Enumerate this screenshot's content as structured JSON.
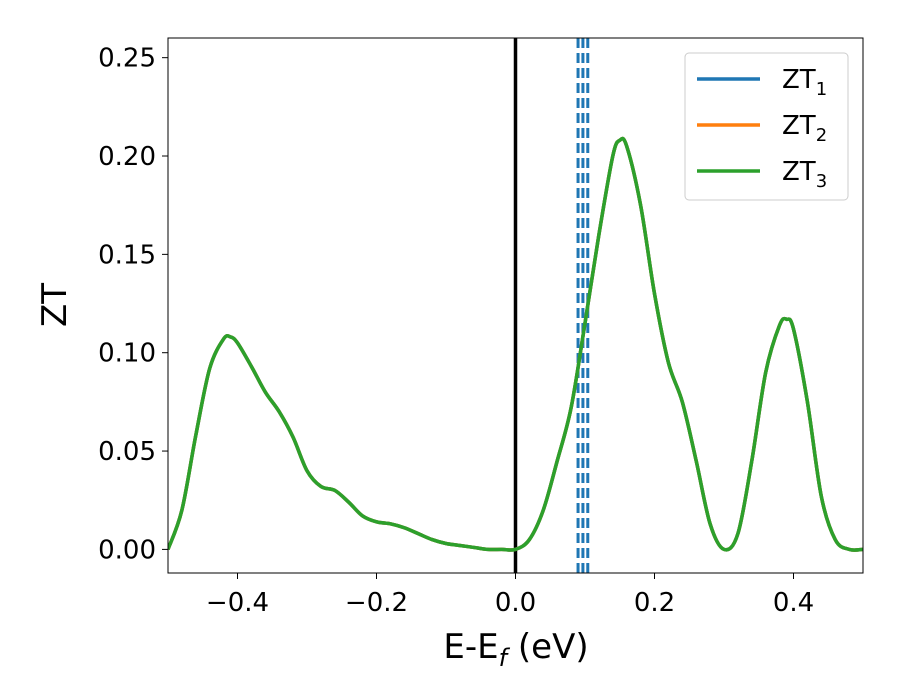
{
  "chart_data": {
    "type": "line",
    "title": "",
    "xlabel": {
      "main": "E-E",
      "sub": "f",
      "suffix": " (eV)"
    },
    "ylabel": "ZT",
    "xlim": [
      -0.5,
      0.5
    ],
    "ylim": [
      -0.012,
      0.26
    ],
    "xticks": [
      -0.4,
      -0.2,
      0.0,
      0.2,
      0.4
    ],
    "xtick_labels": [
      "−0.4",
      "−0.2",
      "0.0",
      "0.2",
      "0.4"
    ],
    "yticks": [
      0.0,
      0.05,
      0.1,
      0.15,
      0.2,
      0.25
    ],
    "ytick_labels": [
      "0.00",
      "0.05",
      "0.10",
      "0.15",
      "0.20",
      "0.25"
    ],
    "grid": false,
    "legend_position": "top-right",
    "series": [
      {
        "name": "ZT",
        "sub": "1",
        "color": "#1f77b4"
      },
      {
        "name": "ZT",
        "sub": "2",
        "color": "#ff7f0e"
      },
      {
        "name": "ZT",
        "sub": "3",
        "color": "#2ca02c"
      }
    ],
    "curve": {
      "x": [
        -0.5,
        -0.48,
        -0.46,
        -0.44,
        -0.42,
        -0.41,
        -0.4,
        -0.38,
        -0.36,
        -0.34,
        -0.32,
        -0.3,
        -0.28,
        -0.26,
        -0.24,
        -0.22,
        -0.2,
        -0.18,
        -0.16,
        -0.14,
        -0.12,
        -0.1,
        -0.08,
        -0.06,
        -0.04,
        -0.02,
        0.0,
        0.02,
        0.04,
        0.06,
        0.08,
        0.1,
        0.12,
        0.14,
        0.15,
        0.16,
        0.18,
        0.2,
        0.22,
        0.24,
        0.26,
        0.28,
        0.3,
        0.32,
        0.34,
        0.36,
        0.38,
        0.39,
        0.4,
        0.42,
        0.44,
        0.46,
        0.48,
        0.5
      ],
      "y": [
        0.0,
        0.02,
        0.058,
        0.092,
        0.107,
        0.108,
        0.105,
        0.093,
        0.08,
        0.07,
        0.057,
        0.04,
        0.032,
        0.03,
        0.024,
        0.017,
        0.014,
        0.013,
        0.011,
        0.008,
        0.005,
        0.003,
        0.002,
        0.001,
        0.0,
        0.0,
        0.0,
        0.005,
        0.02,
        0.045,
        0.072,
        0.115,
        0.16,
        0.2,
        0.208,
        0.205,
        0.175,
        0.13,
        0.095,
        0.075,
        0.045,
        0.013,
        0.0,
        0.008,
        0.045,
        0.09,
        0.114,
        0.117,
        0.112,
        0.075,
        0.027,
        0.005,
        0.0,
        0.0
      ]
    },
    "vertical_lines": [
      {
        "x": 0.0,
        "style": "solid",
        "color": "#000000"
      },
      {
        "x": 0.09,
        "style": "dashed",
        "color": "#1f77b4"
      },
      {
        "x": 0.097,
        "style": "dashed",
        "color": "#1f77b4"
      },
      {
        "x": 0.104,
        "style": "dashed",
        "color": "#1f77b4"
      }
    ]
  }
}
